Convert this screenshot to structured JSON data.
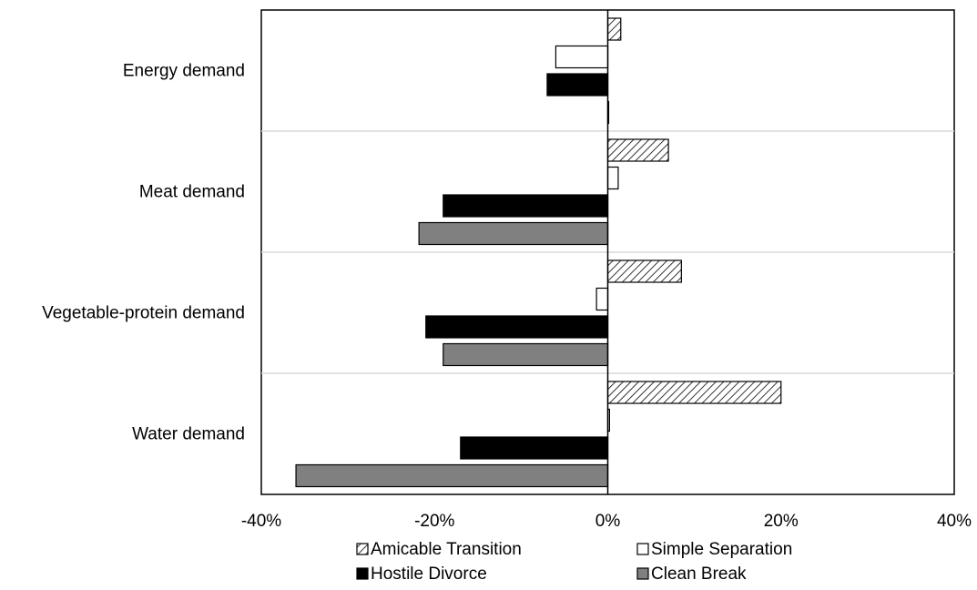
{
  "chart_data": {
    "type": "bar",
    "orientation": "horizontal",
    "categories": [
      "Energy demand",
      "Meat demand",
      "Vegetable-protein demand",
      "Water demand"
    ],
    "series": [
      {
        "name": "Amicable Transition",
        "values": [
          1.5,
          7.0,
          8.5,
          20.0
        ],
        "pattern": "hatch"
      },
      {
        "name": "Simple Separation",
        "values": [
          -6.0,
          1.2,
          -1.3,
          0.2
        ],
        "pattern": "white"
      },
      {
        "name": "Hostile Divorce",
        "values": [
          -7.0,
          -19.0,
          -21.0,
          -17.0
        ],
        "pattern": "black"
      },
      {
        "name": "Clean Break",
        "values": [
          0.1,
          -21.8,
          -19.0,
          -36.0
        ],
        "pattern": "gray"
      }
    ],
    "xlim": [
      -40,
      40
    ],
    "xticks": [
      -40,
      -20,
      0,
      20,
      40
    ],
    "xtick_labels": [
      "-40%",
      "-20%",
      "0%",
      "20%",
      "40%"
    ],
    "title": "",
    "xlabel": "",
    "ylabel": "",
    "legend_position": "bottom",
    "grid": "horizontal separators between categories",
    "colors": {
      "black": "#000000",
      "gray": "#808080",
      "white": "#ffffff",
      "separator": "#d9d9d9"
    }
  }
}
